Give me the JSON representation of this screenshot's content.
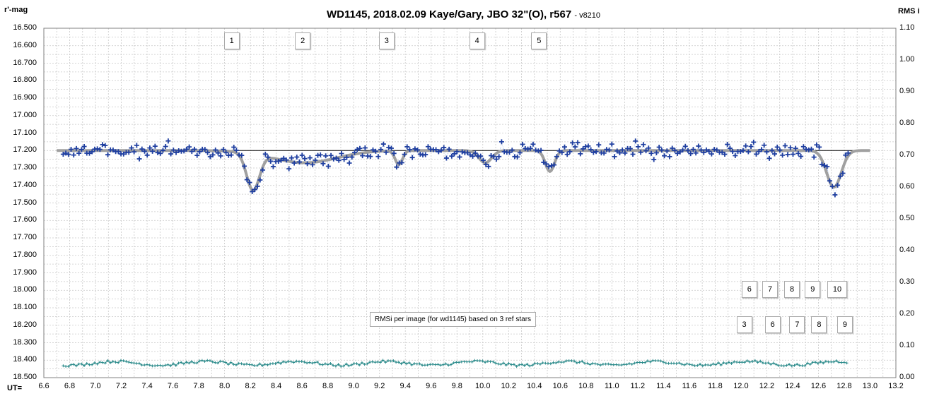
{
  "chart_data": {
    "type": "scatter",
    "title": "WD1145, 2018.02.09  Kaye/Gary, JBO 32\"(O), r567",
    "version": "- v8210",
    "ylabel_left": "r'-mag",
    "ylabel_right": "RMS i",
    "xlabel": "UT=",
    "xlim": [
      6.6,
      13.2
    ],
    "ylim_left": [
      16.5,
      18.5
    ],
    "ylim_left_inverted": true,
    "ylim_right": [
      0.0,
      1.1
    ],
    "grid": true,
    "x_ticks": [
      "6.6",
      "6.8",
      "7.0",
      "7.2",
      "7.4",
      "7.6",
      "7.8",
      "8.0",
      "8.2",
      "8.4",
      "8.6",
      "8.8",
      "9.0",
      "9.2",
      "9.4",
      "9.6",
      "9.8",
      "10.0",
      "10.2",
      "10.4",
      "10.6",
      "10.8",
      "11.0",
      "11.2",
      "11.4",
      "11.6",
      "11.8",
      "12.0",
      "12.2",
      "12.4",
      "12.6",
      "12.8",
      "13.0",
      "13.2"
    ],
    "y_left_ticks": [
      "16.500",
      "16.600",
      "16.700",
      "16.800",
      "16.900",
      "17.000",
      "17.100",
      "17.200",
      "17.300",
      "17.400",
      "17.500",
      "17.600",
      "17.700",
      "17.800",
      "17.900",
      "18.000",
      "18.100",
      "18.200",
      "18.300",
      "18.400",
      "18.500"
    ],
    "y_right_ticks": [
      "1.10",
      "1.00",
      "0.90",
      "0.80",
      "0.70",
      "0.60",
      "0.50",
      "0.40",
      "0.30",
      "0.20",
      "0.10",
      "0.00"
    ],
    "reference_line": 17.2,
    "colors": {
      "points": "#1f3fa0",
      "model": "#a0a0a0",
      "rms": "#2a8a8a",
      "refline": "#000000",
      "grid": "#c8c8c8"
    },
    "dip_markers": [
      {
        "label": "1",
        "x": 8.05
      },
      {
        "label": "2",
        "x": 8.6
      },
      {
        "label": "3",
        "x": 9.25
      },
      {
        "label": "4",
        "x": 9.95
      },
      {
        "label": "5",
        "x": 10.43
      }
    ],
    "upper_markers": [
      {
        "label": "6",
        "x": 12.06
      },
      {
        "label": "7",
        "x": 12.22
      },
      {
        "label": "8",
        "x": 12.39
      },
      {
        "label": "9",
        "x": 12.55
      },
      {
        "label": "10",
        "x": 12.74
      }
    ],
    "lower_markers": [
      {
        "label": "3",
        "x": 12.02
      },
      {
        "label": "6",
        "x": 12.24
      },
      {
        "label": "7",
        "x": 12.43
      },
      {
        "label": "8",
        "x": 12.6
      },
      {
        "label": "9",
        "x": 12.8
      }
    ],
    "rms_note": "RMSi per image (for wd1145) based on 3 ref stars",
    "model_dips": [
      {
        "center": 8.22,
        "depth": 0.21,
        "width": 0.07
      },
      {
        "center": 8.62,
        "depth": 0.07,
        "width": 0.35
      },
      {
        "center": 9.35,
        "depth": 0.08,
        "width": 0.04
      },
      {
        "center": 10.02,
        "depth": 0.07,
        "width": 0.07
      },
      {
        "center": 10.52,
        "depth": 0.12,
        "width": 0.05
      },
      {
        "center": 12.72,
        "depth": 0.21,
        "width": 0.08
      }
    ],
    "model_baseline": 17.2,
    "model_x_range": [
      6.7,
      13.0
    ],
    "data_points_x_range": [
      6.75,
      12.83
    ],
    "data_points_n": 300,
    "data_scatter": 0.04,
    "rms_values_x_range": [
      6.75,
      12.82
    ],
    "rms_level": 0.045,
    "rms_scatter": 0.008
  }
}
